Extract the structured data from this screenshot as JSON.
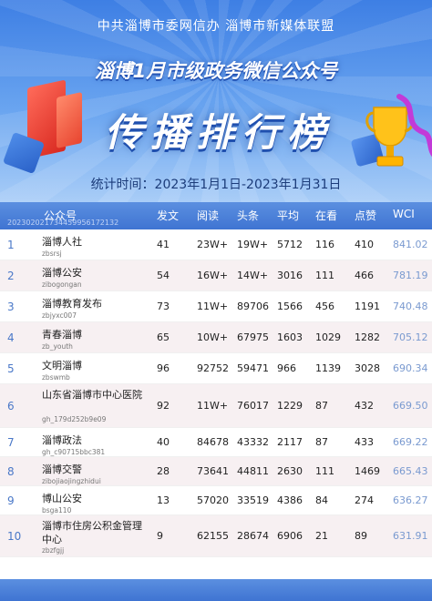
{
  "header": {
    "organizations": "中共淄博市委网信办  淄博市新媒体联盟",
    "subtitle": "淄博1月市级政务微信公众号",
    "title": "传播排行榜",
    "period": "统计时间：2023年1月1日-2023年1月31日"
  },
  "colors": {
    "header_blue": "#3f74d2",
    "row_alt": "#f7f0f2",
    "wci_text": "#7a9ad0"
  },
  "table": {
    "watermark": "20230202173445995617213​2",
    "columns": [
      "公众号",
      "发文",
      "阅读",
      "头条",
      "平均",
      "在看",
      "点赞",
      "WCI"
    ],
    "rows": [
      {
        "rank": "1",
        "name": "淄博人社",
        "account": "zbsrsj",
        "posts": "41",
        "reads": "23W+",
        "headline": "19W+",
        "avg": "5712",
        "watching": "116",
        "likes": "410",
        "wci": "841.02"
      },
      {
        "rank": "2",
        "name": "淄博公安",
        "account": "zibogongan",
        "posts": "54",
        "reads": "16W+",
        "headline": "14W+",
        "avg": "3016",
        "watching": "111",
        "likes": "466",
        "wci": "781.19"
      },
      {
        "rank": "3",
        "name": "淄博教育发布",
        "account": "zbjyxc007",
        "posts": "73",
        "reads": "11W+",
        "headline": "89706",
        "avg": "1566",
        "watching": "456",
        "likes": "1191",
        "wci": "740.48"
      },
      {
        "rank": "4",
        "name": "青春淄博",
        "account": "zb_youth",
        "posts": "65",
        "reads": "10W+",
        "headline": "67975",
        "avg": "1603",
        "watching": "1029",
        "likes": "1282",
        "wci": "705.12"
      },
      {
        "rank": "5",
        "name": "文明淄博",
        "account": "zbswmb",
        "posts": "96",
        "reads": "92752",
        "headline": "59471",
        "avg": "966",
        "watching": "1139",
        "likes": "3028",
        "wci": "690.34"
      },
      {
        "rank": "6",
        "name": "山东省淄博市中心医院",
        "account": "gh_179d252b9e09",
        "posts": "92",
        "reads": "11W+",
        "headline": "76017",
        "avg": "1229",
        "watching": "87",
        "likes": "432",
        "wci": "669.50"
      },
      {
        "rank": "7",
        "name": "淄博政法",
        "account": "gh_c90715bbc381",
        "posts": "40",
        "reads": "84678",
        "headline": "43332",
        "avg": "2117",
        "watching": "87",
        "likes": "433",
        "wci": "669.22"
      },
      {
        "rank": "8",
        "name": "淄博交警",
        "account": "zibojiaojingzhidui",
        "posts": "28",
        "reads": "73641",
        "headline": "44811",
        "avg": "2630",
        "watching": "111",
        "likes": "1469",
        "wci": "665.43"
      },
      {
        "rank": "9",
        "name": "博山公安",
        "account": "bsga110",
        "posts": "13",
        "reads": "57020",
        "headline": "33519",
        "avg": "4386",
        "watching": "84",
        "likes": "274",
        "wci": "636.27"
      },
      {
        "rank": "10",
        "name": "淄博市住房公积金管理中心",
        "account": "zbzfgjj",
        "posts": "9",
        "reads": "62155",
        "headline": "28674",
        "avg": "6906",
        "watching": "21",
        "likes": "89",
        "wci": "631.91"
      }
    ]
  }
}
